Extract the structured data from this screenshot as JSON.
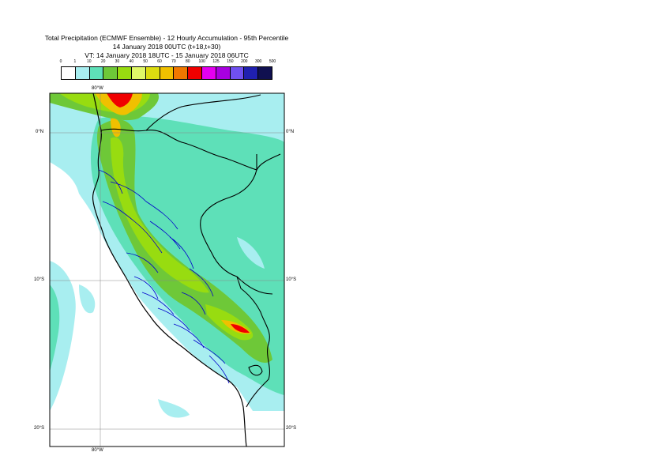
{
  "title": {
    "line1": "Total Precipitation (ECMWF Ensemble) - 12 Hourly Accumulation - 95th Percentile",
    "line2": "14 January 2018 00UTC (t+18,t+30)",
    "line3": "VT: 14 January 2018 18UTC - 15 January 2018 06UTC"
  },
  "legend": {
    "thresholds": [
      "0",
      "1",
      "10",
      "20",
      "30",
      "40",
      "50",
      "60",
      "70",
      "80",
      "100",
      "125",
      "150",
      "200",
      "300",
      "500"
    ],
    "colors": [
      "#ffffff",
      "#a8eef0",
      "#5ee0b8",
      "#6ec838",
      "#98dc10",
      "#e0f868",
      "#dcdc10",
      "#f0c000",
      "#f07800",
      "#f00000",
      "#e400f0",
      "#a800e0",
      "#7050f0",
      "#2020b0",
      "#101050"
    ]
  },
  "map": {
    "land_color": "#ffffff",
    "country_border_color": "#000000",
    "region_border_color": "#0000cc",
    "labels": {
      "lon_top": "80°W",
      "lon_bottom": "80°W",
      "lat_0_left": "0°N",
      "lat_0_right": "0°N",
      "lat_10_left": "10°S",
      "lat_10_right": "10°S",
      "lat_20_left": "20°S",
      "lat_20_right": "20°S"
    }
  }
}
